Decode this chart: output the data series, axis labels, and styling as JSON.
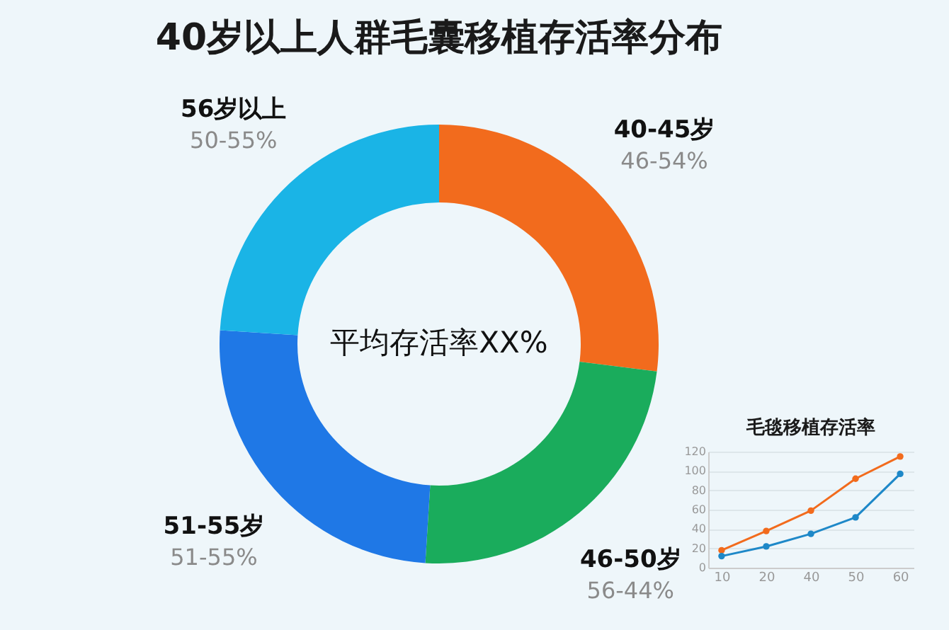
{
  "chart_data": [
    {
      "type": "donut",
      "title": "40岁以上人群毛囊移植存活率分布",
      "categories": [
        "40-45岁",
        "46-50岁",
        "51-55岁",
        "56岁以上"
      ],
      "values": [
        27,
        24,
        25,
        24
      ],
      "colors": [
        "#f26b1d",
        "#1aac5c",
        "#1f78e6",
        "#1ab4e6"
      ],
      "annotations": [
        "平均存活率XX%",
        {
          "text": "46-54%",
          "x": "40-45岁"
        },
        {
          "text": "56-44%",
          "x": "46-50岁"
        },
        {
          "text": "51-55%",
          "x": "51-55岁"
        },
        {
          "text": "50-55%",
          "x": "56岁以上"
        }
      ]
    },
    {
      "type": "line",
      "title": "毛毯移植存活率",
      "categories": [
        "10",
        "20",
        "40",
        "50",
        "60"
      ],
      "series": [
        {
          "color": "#f26b1d",
          "values": [
            18,
            38,
            59,
            92,
            115
          ]
        },
        {
          "color": "#1e88c8",
          "values": [
            12,
            22,
            35,
            52,
            97
          ]
        }
      ],
      "ylim": [
        0,
        120
      ],
      "yticks": [
        0,
        20,
        40,
        60,
        80,
        100,
        120
      ],
      "grid": "y",
      "marker": "circle"
    }
  ]
}
